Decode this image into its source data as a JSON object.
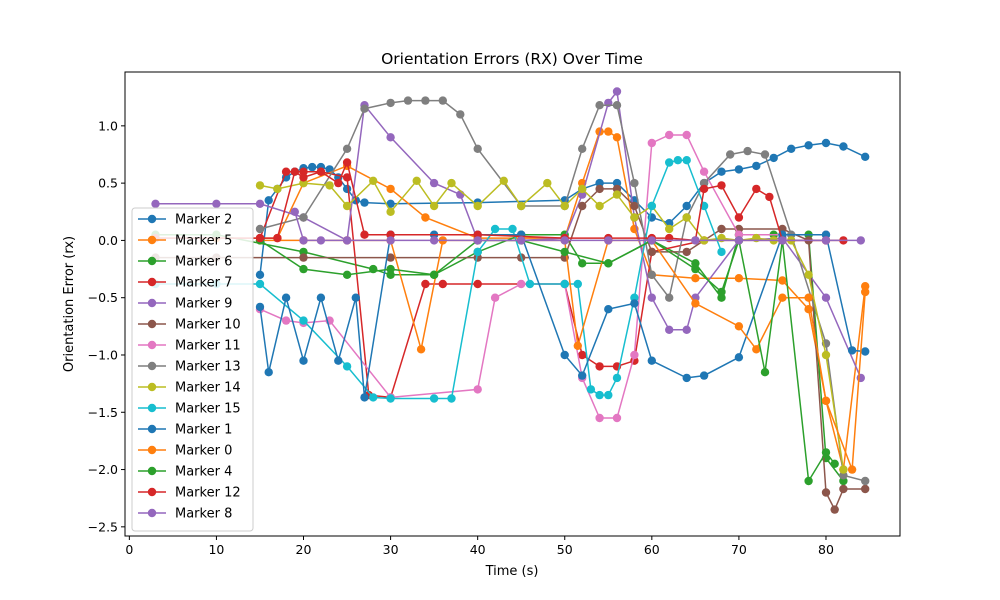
{
  "chart_data": {
    "type": "line",
    "title": "Orientation Errors (RX) Over Time",
    "xlabel": "Time (s)",
    "ylabel": "Orientation Error (rx)",
    "xlim": [
      -0.5,
      88.5
    ],
    "ylim": [
      -2.58,
      1.47
    ],
    "xticks": [
      0,
      10,
      20,
      30,
      40,
      50,
      60,
      70,
      80
    ],
    "yticks": [
      -2.5,
      -2.0,
      -1.5,
      -1.0,
      -0.5,
      0.0,
      0.5,
      1.0
    ],
    "xtick_labels": [
      "0",
      "10",
      "20",
      "30",
      "40",
      "50",
      "60",
      "70",
      "80"
    ],
    "ytick_labels": [
      "−2.5",
      "−2.0",
      "−1.5",
      "−1.0",
      "−0.5",
      "0.0",
      "0.5",
      "1.0"
    ],
    "grid": false,
    "legend_position": "lower-left",
    "marker": "circle",
    "series": [
      {
        "name": "Marker 2",
        "color": "#1f77b4",
        "x": [
          15,
          16,
          17,
          18,
          19,
          20,
          21,
          22,
          23,
          24,
          25,
          26,
          27,
          30,
          40,
          50,
          52,
          54,
          56,
          58,
          60,
          62,
          64,
          66,
          68,
          70,
          72,
          74,
          76,
          78,
          80,
          82,
          84.5
        ],
        "y": [
          -0.3,
          0.35,
          0.45,
          0.55,
          0.6,
          0.63,
          0.64,
          0.64,
          0.62,
          0.55,
          0.45,
          0.35,
          0.33,
          0.32,
          0.33,
          0.35,
          0.45,
          0.5,
          0.5,
          0.35,
          0.2,
          0.15,
          0.3,
          0.5,
          0.6,
          0.62,
          0.65,
          0.72,
          0.8,
          0.83,
          0.85,
          0.82,
          0.73
        ]
      },
      {
        "name": "Marker 5",
        "color": "#ff7f0e",
        "x": [
          3,
          10,
          17,
          20,
          25,
          30,
          34,
          40,
          50,
          52,
          54,
          55,
          56,
          58,
          60,
          65,
          70,
          75,
          78,
          80,
          82,
          84.5
        ],
        "y": [
          0.02,
          0.02,
          0.02,
          0.5,
          0.65,
          0.45,
          0.2,
          0.02,
          0.02,
          0.5,
          0.95,
          0.95,
          0.9,
          0.1,
          -0.3,
          -0.33,
          -0.33,
          -0.35,
          -0.6,
          -1.4,
          -2.0,
          -0.4
        ]
      },
      {
        "name": "Marker 6",
        "color": "#2ca02c",
        "x": [
          3,
          10,
          20,
          28,
          30,
          35,
          40,
          45,
          50,
          52,
          55,
          60,
          65,
          68,
          70,
          74,
          78,
          80,
          82
        ],
        "y": [
          0.05,
          0.05,
          -0.1,
          -0.25,
          -0.3,
          -0.3,
          -0.1,
          0.05,
          0.05,
          -0.2,
          -0.2,
          0.0,
          -0.2,
          -0.5,
          0.05,
          0.05,
          0.05,
          -1.9,
          -2.1
        ]
      },
      {
        "name": "Marker 7",
        "color": "#d62728",
        "x": [
          3,
          15,
          18,
          20,
          22,
          25,
          27.5,
          30,
          34,
          36,
          40,
          50,
          52,
          54,
          56,
          58,
          60,
          66,
          70,
          75,
          80
        ],
        "y": [
          0.02,
          0.02,
          0.6,
          0.6,
          0.6,
          0.55,
          -1.35,
          -1.37,
          -0.38,
          -0.38,
          -0.38,
          -0.38,
          -1.0,
          -1.1,
          -1.1,
          -1.05,
          -0.1,
          0.0,
          0.0,
          0.0,
          0.0
        ]
      },
      {
        "name": "Marker 9",
        "color": "#9467bd",
        "x": [
          3,
          10,
          15,
          20,
          25,
          27,
          30,
          35,
          38,
          40,
          45,
          50,
          52,
          55,
          56,
          58,
          60,
          62,
          64,
          65,
          70,
          75,
          80,
          84
        ],
        "y": [
          0.32,
          0.32,
          0.32,
          0.2,
          0.0,
          1.18,
          0.9,
          0.5,
          0.4,
          0.0,
          0.0,
          0.02,
          0.4,
          1.2,
          1.3,
          0.2,
          -0.5,
          -0.78,
          -0.78,
          -0.5,
          0.0,
          0.02,
          -0.5,
          -1.2
        ]
      },
      {
        "name": "Marker 10",
        "color": "#8c564b",
        "x": [
          3,
          10,
          20,
          30,
          40,
          45,
          50,
          52,
          54,
          56,
          58,
          60,
          64,
          68,
          70,
          75,
          78,
          80,
          81,
          82,
          84.5
        ],
        "y": [
          -0.15,
          -0.15,
          -0.15,
          -0.15,
          -0.15,
          -0.15,
          -0.15,
          0.3,
          0.45,
          0.45,
          0.3,
          -0.1,
          -0.1,
          0.1,
          0.1,
          0.1,
          0.0,
          -2.2,
          -2.35,
          -2.17,
          -2.17
        ]
      },
      {
        "name": "Marker 11",
        "color": "#e377c2",
        "x": [
          15,
          18,
          20,
          23,
          30,
          40,
          42,
          45,
          50,
          52,
          54,
          56,
          58,
          60,
          62,
          64,
          66,
          70,
          80
        ],
        "y": [
          -0.6,
          -0.7,
          -0.72,
          -0.7,
          -1.37,
          -1.3,
          -0.5,
          -0.38,
          -0.38,
          -1.2,
          -1.55,
          -1.55,
          -1.0,
          0.85,
          0.92,
          0.92,
          0.6,
          0.05,
          0.05
        ]
      },
      {
        "name": "Marker 13",
        "color": "#7f7f7f",
        "x": [
          15,
          20,
          25,
          27,
          30,
          32,
          34,
          36,
          38,
          40,
          45,
          50,
          52,
          54,
          56,
          58,
          60,
          62,
          64,
          66,
          69,
          71,
          73,
          76,
          80,
          82,
          84.5
        ],
        "y": [
          0.1,
          0.2,
          0.8,
          1.15,
          1.2,
          1.22,
          1.22,
          1.22,
          1.1,
          0.8,
          0.3,
          0.3,
          0.8,
          1.18,
          1.18,
          0.5,
          -0.3,
          -0.5,
          0.2,
          0.5,
          0.75,
          0.78,
          0.75,
          0.05,
          -0.9,
          -2.05,
          -2.1
        ]
      },
      {
        "name": "Marker 14",
        "color": "#bcbd22",
        "x": [
          15,
          17,
          20,
          23,
          25,
          28,
          30,
          33,
          35,
          37,
          40,
          43,
          45,
          48,
          50,
          52,
          54,
          56,
          58,
          60,
          62,
          64,
          66,
          68,
          70,
          72,
          74,
          76,
          78,
          80,
          82
        ],
        "y": [
          0.48,
          0.45,
          0.5,
          0.48,
          0.3,
          0.52,
          0.25,
          0.52,
          0.3,
          0.5,
          0.3,
          0.52,
          0.3,
          0.5,
          0.3,
          0.45,
          0.3,
          0.4,
          0.2,
          0.3,
          0.1,
          0.2,
          0.0,
          0.02,
          0.0,
          0.02,
          0.0,
          0.0,
          -0.3,
          -1.0,
          -2.0
        ]
      },
      {
        "name": "Marker 15",
        "color": "#17becf",
        "x": [
          3,
          10,
          15,
          20,
          25,
          28,
          30,
          35,
          37,
          40,
          42,
          44,
          46,
          50,
          51.5,
          53,
          54,
          55,
          56,
          58,
          60,
          62,
          63,
          64,
          66,
          68
        ],
        "y": [
          -0.38,
          -0.38,
          -0.38,
          -0.7,
          -1.1,
          -1.37,
          -1.38,
          -1.38,
          -1.38,
          -0.1,
          0.1,
          0.1,
          -0.38,
          -0.38,
          -0.38,
          -1.3,
          -1.35,
          -1.35,
          -1.2,
          -0.5,
          0.3,
          0.68,
          0.7,
          0.7,
          0.3,
          -0.1
        ]
      },
      {
        "name": "Marker 1",
        "color": "#1f77b4",
        "x": [
          15,
          16,
          18,
          20,
          22,
          24,
          26,
          27,
          30,
          35,
          40,
          45,
          50,
          52,
          55,
          58,
          60,
          64,
          66,
          70,
          75,
          80,
          83,
          84.5
        ],
        "y": [
          -0.58,
          -1.15,
          -0.5,
          -1.05,
          -0.5,
          -1.05,
          -0.5,
          -1.37,
          0.05,
          0.05,
          0.05,
          0.05,
          -1.0,
          -1.18,
          -0.6,
          -0.55,
          -1.05,
          -1.2,
          -1.18,
          -1.02,
          0.05,
          0.05,
          -0.96,
          -0.97
        ]
      },
      {
        "name": "Marker 0",
        "color": "#ff7f0e",
        "x": [
          15,
          20,
          25,
          30,
          33.5,
          36,
          40,
          45,
          50,
          51.5,
          55,
          60,
          65,
          70,
          72,
          75,
          78,
          80,
          83,
          84.5
        ],
        "y": [
          0.0,
          0.0,
          0.0,
          0.0,
          -0.95,
          0.0,
          0.0,
          0.0,
          0.0,
          -0.92,
          0.0,
          0.0,
          -0.55,
          -0.75,
          -0.95,
          -0.5,
          -0.5,
          -1.4,
          -2.0,
          -0.45
        ]
      },
      {
        "name": "Marker 4",
        "color": "#2ca02c",
        "x": [
          15,
          20,
          25,
          30,
          35,
          40,
          45,
          50,
          55,
          60,
          65,
          68,
          70,
          73,
          75,
          78,
          80,
          81
        ],
        "y": [
          0.0,
          -0.25,
          -0.3,
          -0.25,
          -0.3,
          0.0,
          0.0,
          -0.1,
          -0.2,
          0.0,
          -0.25,
          -0.45,
          0.0,
          -1.15,
          0.0,
          -2.1,
          -1.85,
          -1.95
        ]
      },
      {
        "name": "Marker 12",
        "color": "#d62728",
        "x": [
          15,
          17,
          19,
          20,
          22,
          24,
          25,
          27,
          30,
          40,
          50,
          55,
          60,
          62,
          65,
          66,
          68,
          70,
          72,
          73.5,
          75,
          80,
          82
        ],
        "y": [
          0.02,
          0.02,
          0.6,
          0.55,
          0.6,
          0.5,
          0.68,
          0.05,
          0.05,
          0.05,
          0.02,
          0.02,
          0.02,
          0.02,
          0.0,
          0.45,
          0.48,
          0.2,
          0.45,
          0.38,
          0.0,
          0.0,
          0.0
        ]
      },
      {
        "name": "Marker 8",
        "color": "#9467bd",
        "x": [
          19,
          20,
          22,
          25,
          30,
          35,
          40,
          45,
          50,
          55,
          60,
          65,
          70,
          75,
          80,
          84
        ],
        "y": [
          0.25,
          0.0,
          0.0,
          0.0,
          0.0,
          0.0,
          0.0,
          0.0,
          0.0,
          0.0,
          0.0,
          0.0,
          0.0,
          0.0,
          0.0,
          0.0
        ]
      }
    ]
  }
}
